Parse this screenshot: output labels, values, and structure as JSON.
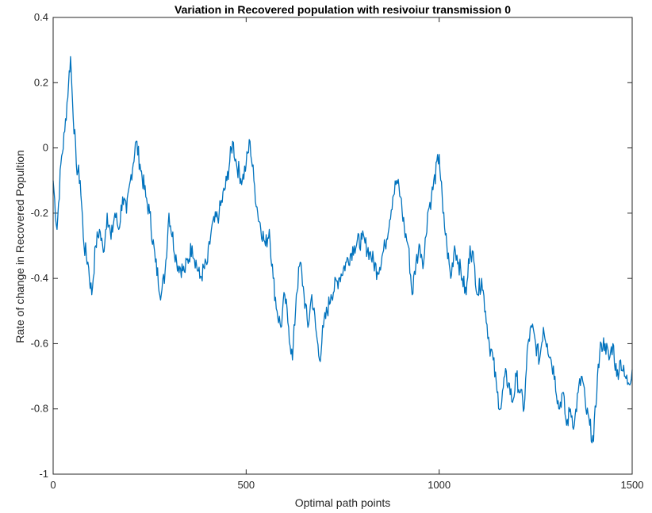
{
  "chart_data": {
    "type": "line",
    "title": "Variation in Recovered population with resivoiur transmission 0",
    "xlabel": "Optimal path points",
    "ylabel": "Rate of change in Recovered Popultion",
    "xlim": [
      0,
      1500
    ],
    "ylim": [
      -1,
      0.4
    ],
    "xticks": [
      0,
      500,
      1000,
      1500
    ],
    "xtick_labels": [
      "0",
      "500",
      "1000",
      "1500"
    ],
    "yticks": [
      -1,
      -0.8,
      -0.6,
      -0.4,
      -0.2,
      0,
      0.2,
      0.4
    ],
    "ytick_labels": [
      "-1",
      "-0.8",
      "-0.6",
      "-0.4",
      "-0.2",
      "0",
      "0.2",
      "0.4"
    ],
    "grid": false,
    "line_color": "#0072BD",
    "series": [
      {
        "x": [
          0,
          10,
          20,
          30,
          40,
          45,
          50,
          60,
          70,
          80,
          90,
          100,
          110,
          120,
          130,
          140,
          150,
          160,
          170,
          180,
          190,
          200,
          215,
          225,
          240,
          250,
          265,
          280,
          290,
          300,
          320,
          340,
          360,
          380,
          400,
          410,
          430,
          450,
          465,
          475,
          490,
          500,
          510,
          520,
          530,
          550,
          560,
          570,
          580,
          590,
          600,
          610,
          620,
          630,
          640,
          650,
          660,
          670,
          680,
          690,
          700,
          720,
          740,
          760,
          780,
          800,
          820,
          840,
          860,
          880,
          890,
          900,
          910,
          920,
          930,
          940,
          950,
          960,
          970,
          980,
          1000,
          1010,
          1020,
          1030,
          1040,
          1050,
          1060,
          1070,
          1080,
          1090,
          1100,
          1110,
          1120,
          1130,
          1140,
          1150,
          1160,
          1170,
          1180,
          1190,
          1200,
          1210,
          1220,
          1230,
          1240,
          1250,
          1260,
          1270,
          1280,
          1290,
          1300,
          1310,
          1320,
          1330,
          1340,
          1350,
          1360,
          1370,
          1380,
          1390,
          1400,
          1410,
          1420,
          1430,
          1440,
          1450,
          1460,
          1470,
          1480,
          1490,
          1500
        ],
        "y": [
          -0.1,
          -0.25,
          -0.05,
          0.05,
          0.2,
          0.28,
          0.15,
          -0.05,
          -0.1,
          -0.3,
          -0.35,
          -0.45,
          -0.3,
          -0.25,
          -0.32,
          -0.2,
          -0.28,
          -0.2,
          -0.25,
          -0.15,
          -0.2,
          -0.1,
          0.02,
          -0.05,
          -0.15,
          -0.2,
          -0.35,
          -0.45,
          -0.38,
          -0.2,
          -0.35,
          -0.38,
          -0.3,
          -0.4,
          -0.35,
          -0.25,
          -0.2,
          -0.1,
          0.02,
          -0.05,
          -0.1,
          -0.05,
          0.02,
          -0.1,
          -0.2,
          -0.3,
          -0.25,
          -0.4,
          -0.5,
          -0.55,
          -0.45,
          -0.55,
          -0.65,
          -0.45,
          -0.35,
          -0.45,
          -0.55,
          -0.45,
          -0.55,
          -0.65,
          -0.55,
          -0.45,
          -0.4,
          -0.35,
          -0.3,
          -0.28,
          -0.32,
          -0.38,
          -0.3,
          -0.15,
          -0.1,
          -0.15,
          -0.25,
          -0.3,
          -0.45,
          -0.35,
          -0.3,
          -0.35,
          -0.2,
          -0.15,
          -0.02,
          -0.2,
          -0.3,
          -0.4,
          -0.3,
          -0.35,
          -0.4,
          -0.45,
          -0.3,
          -0.35,
          -0.45,
          -0.4,
          -0.5,
          -0.6,
          -0.65,
          -0.75,
          -0.8,
          -0.7,
          -0.72,
          -0.78,
          -0.7,
          -0.75,
          -0.8,
          -0.6,
          -0.55,
          -0.6,
          -0.65,
          -0.55,
          -0.6,
          -0.65,
          -0.7,
          -0.8,
          -0.75,
          -0.85,
          -0.8,
          -0.85,
          -0.75,
          -0.7,
          -0.8,
          -0.85,
          -0.9,
          -0.7,
          -0.6,
          -0.6,
          -0.65,
          -0.6,
          -0.7,
          -0.65,
          -0.7,
          -0.72,
          -0.68
        ]
      }
    ]
  }
}
